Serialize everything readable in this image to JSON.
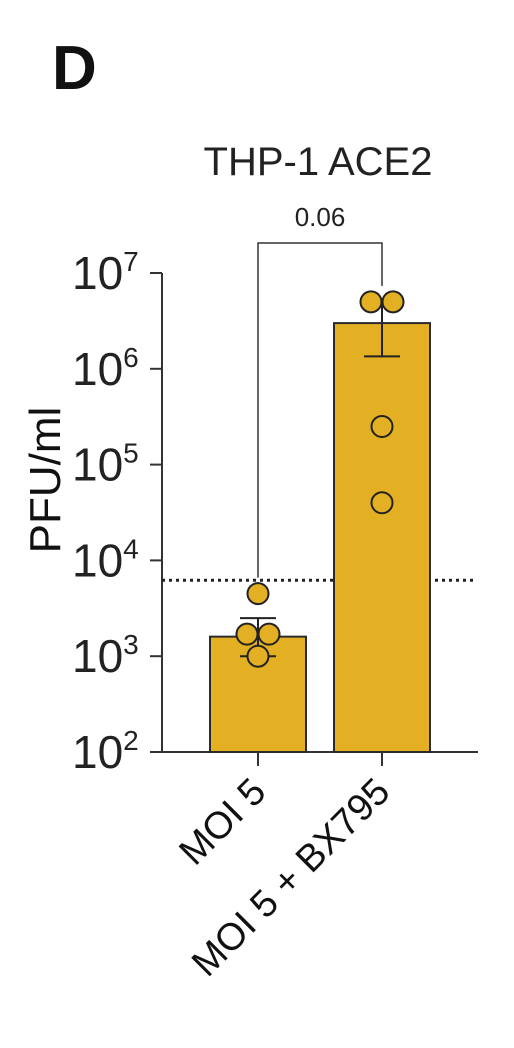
{
  "panel_label": "D",
  "chart_data": {
    "type": "bar",
    "title": "THP-1 ACE2",
    "xlabel": "",
    "ylabel": "PFU/ml",
    "yscale": "log",
    "ylim": [
      100,
      10000000
    ],
    "yticks": [
      {
        "base": "10",
        "exp": "2",
        "value": 100
      },
      {
        "base": "10",
        "exp": "3",
        "value": 1000
      },
      {
        "base": "10",
        "exp": "4",
        "value": 10000
      },
      {
        "base": "10",
        "exp": "5",
        "value": 100000
      },
      {
        "base": "10",
        "exp": "6",
        "value": 1000000
      },
      {
        "base": "10",
        "exp": "7",
        "value": 10000000
      }
    ],
    "categories": [
      "MOI 5",
      "MOI 5 + BX795"
    ],
    "values": [
      1600,
      3000000
    ],
    "error_upper": [
      2500,
      4700000
    ],
    "error_lower": [
      1000,
      1350000
    ],
    "points": [
      [
        4500,
        1700,
        1700,
        1000
      ],
      [
        5000000,
        5000000,
        250000,
        40000
      ]
    ],
    "detection_limit": 6200,
    "grid": false,
    "significance": {
      "label": "0.06",
      "between": [
        0,
        1
      ]
    },
    "colors": {
      "bar_fill": "#e3b024",
      "bar_edge": "#2a2a2a",
      "point_fill": "#e3b024",
      "axis": "#333333"
    }
  }
}
